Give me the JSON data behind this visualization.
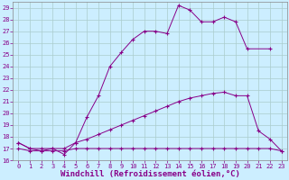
{
  "xlabel": "Windchill (Refroidissement éolien,°C)",
  "xlim": [
    -0.5,
    23.5
  ],
  "ylim": [
    16,
    29.5
  ],
  "xticks": [
    0,
    1,
    2,
    3,
    4,
    5,
    6,
    7,
    8,
    9,
    10,
    11,
    12,
    13,
    14,
    15,
    16,
    17,
    18,
    19,
    20,
    21,
    22,
    23
  ],
  "yticks": [
    16,
    17,
    18,
    19,
    20,
    21,
    22,
    23,
    24,
    25,
    26,
    27,
    28,
    29
  ],
  "line1_x": [
    0,
    1,
    2,
    3,
    4,
    5,
    6,
    7,
    8,
    9,
    10,
    11,
    12,
    13,
    14,
    15,
    16,
    17,
    18,
    19,
    20,
    22
  ],
  "line1_y": [
    17.5,
    17.0,
    16.8,
    17.0,
    16.5,
    17.5,
    19.7,
    21.5,
    24.0,
    25.2,
    26.3,
    27.0,
    27.0,
    26.8,
    29.2,
    28.8,
    27.8,
    27.8,
    28.2,
    27.8,
    25.5,
    25.5
  ],
  "line2_x": [
    0,
    1,
    2,
    3,
    4,
    5,
    6,
    7,
    8,
    9,
    10,
    11,
    12,
    13,
    14,
    15,
    16,
    17,
    18,
    19,
    20,
    21,
    22,
    23
  ],
  "line2_y": [
    17.0,
    16.8,
    16.8,
    16.8,
    16.8,
    17.0,
    17.0,
    17.0,
    17.0,
    17.0,
    17.0,
    17.0,
    17.0,
    17.0,
    17.0,
    17.0,
    17.0,
    17.0,
    17.0,
    17.0,
    17.0,
    17.0,
    17.0,
    16.8
  ],
  "line3_x": [
    0,
    1,
    2,
    3,
    4,
    5,
    6,
    7,
    8,
    9,
    10,
    11,
    12,
    13,
    14,
    15,
    16,
    17,
    18,
    19,
    20,
    21,
    22,
    23
  ],
  "line3_y": [
    17.5,
    17.0,
    17.0,
    17.0,
    17.0,
    17.5,
    17.8,
    18.2,
    18.6,
    19.0,
    19.4,
    19.8,
    20.2,
    20.6,
    21.0,
    21.3,
    21.5,
    21.7,
    21.8,
    21.5,
    21.5,
    18.5,
    17.8,
    16.8
  ],
  "bg_color": "#cceeff",
  "line_color": "#880088",
  "grid_color": "#aacccc",
  "tick_fontsize": 5.0,
  "xlabel_fontsize": 6.5
}
